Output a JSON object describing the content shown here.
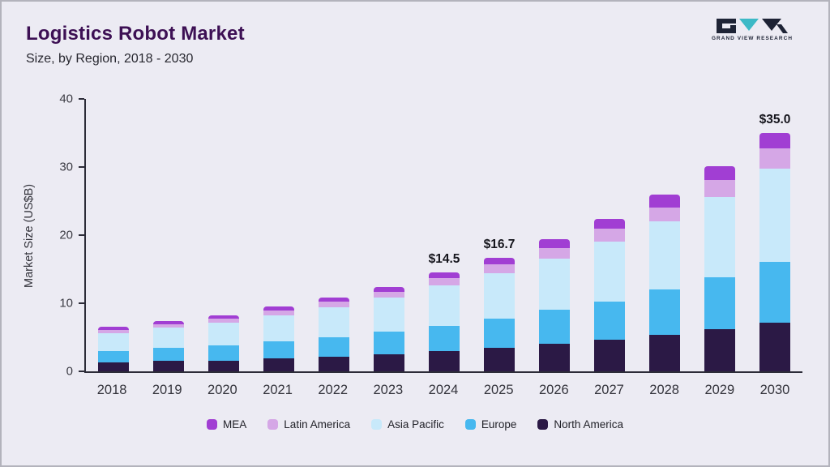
{
  "header": {
    "title": "Logistics Robot Market",
    "subtitle": "Size, by Region, 2018 - 2030",
    "logo_text": "GRAND VIEW RESEARCH"
  },
  "chart_data": {
    "type": "bar",
    "stacked": true,
    "title": "Logistics Robot Market Size, by Region, 2018 - 2030",
    "xlabel": "",
    "ylabel": "Market Size (US$B)",
    "ylim": [
      0,
      40
    ],
    "yticks": [
      0,
      10,
      20,
      30,
      40
    ],
    "grid": false,
    "legend_position": "bottom",
    "categories": [
      "2018",
      "2019",
      "2020",
      "2021",
      "2022",
      "2023",
      "2024",
      "2025",
      "2026",
      "2027",
      "2028",
      "2029",
      "2030"
    ],
    "series": [
      {
        "name": "North America",
        "color": "#2b1945",
        "values": [
          1.3,
          1.5,
          1.6,
          1.9,
          2.2,
          2.5,
          3.0,
          3.4,
          4.0,
          4.6,
          5.4,
          6.2,
          7.2
        ]
      },
      {
        "name": "Europe",
        "color": "#47b8ef",
        "values": [
          1.7,
          1.9,
          2.2,
          2.5,
          2.8,
          3.3,
          3.7,
          4.3,
          5.0,
          5.7,
          6.6,
          7.6,
          8.9
        ]
      },
      {
        "name": "Asia Pacific",
        "color": "#c8e9fa",
        "values": [
          2.6,
          3.0,
          3.3,
          3.8,
          4.4,
          5.0,
          5.9,
          6.7,
          7.5,
          8.8,
          10.0,
          11.8,
          13.7
        ]
      },
      {
        "name": "Latin America",
        "color": "#d5a7e6",
        "values": [
          0.5,
          0.55,
          0.6,
          0.75,
          0.8,
          0.9,
          1.1,
          1.3,
          1.6,
          1.8,
          2.1,
          2.5,
          2.9
        ]
      },
      {
        "name": "MEA",
        "color": "#a13ed3",
        "values": [
          0.4,
          0.45,
          0.5,
          0.55,
          0.6,
          0.7,
          0.8,
          1.0,
          1.3,
          1.5,
          1.8,
          2.0,
          2.3
        ]
      }
    ],
    "totals": [
      6.5,
      7.4,
      8.2,
      9.5,
      10.8,
      12.4,
      14.5,
      16.7,
      19.4,
      22.4,
      25.9,
      30.1,
      35.0
    ],
    "annotations": [
      {
        "category": "2024",
        "text": "$14.5"
      },
      {
        "category": "2025",
        "text": "$16.7"
      },
      {
        "category": "2030",
        "text": "$35.0"
      }
    ]
  },
  "legend": {
    "items": [
      {
        "label": "MEA",
        "color": "#a13ed3"
      },
      {
        "label": "Latin America",
        "color": "#d5a7e6"
      },
      {
        "label": "Asia Pacific",
        "color": "#c8e9fa"
      },
      {
        "label": "Europe",
        "color": "#47b8ef"
      },
      {
        "label": "North America",
        "color": "#2b1945"
      }
    ]
  },
  "colors": {
    "background": "#ecebf3",
    "title": "#3d1054",
    "axis": "#2c2c38",
    "logo_dark": "#1e2335",
    "logo_teal": "#3cb9c6"
  }
}
